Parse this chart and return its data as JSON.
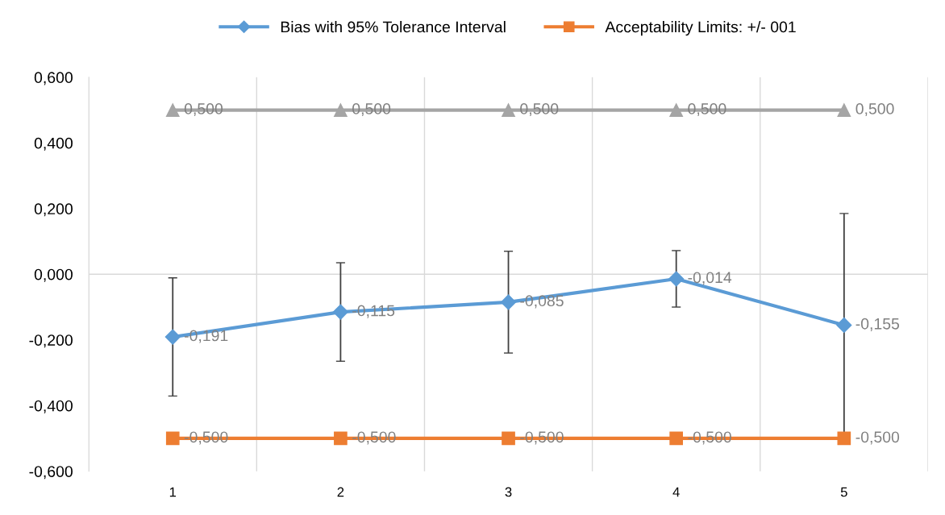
{
  "chart_data": {
    "type": "line",
    "categories": [
      "1",
      "2",
      "3",
      "4",
      "5"
    ],
    "series": [
      {
        "name": "Bias with 95% Tolerance Interval",
        "color": "#5b9bd5",
        "marker": "diamond",
        "values": [
          -0.191,
          -0.115,
          -0.085,
          -0.014,
          -0.155
        ],
        "errors": [
          0.18,
          0.15,
          0.155,
          0.086,
          0.34
        ],
        "value_labels": [
          "-0,191",
          "-0,115",
          "-0,085",
          "-0,014",
          "-0,155"
        ]
      },
      {
        "name": "Acceptability Limits: +/- 001",
        "color": "#ed7d31",
        "marker": "square",
        "values": [
          -0.5,
          -0.5,
          -0.5,
          -0.5,
          -0.5
        ],
        "value_labels": [
          "-0,500",
          "-0,500",
          "-0,500",
          "-0,500",
          "-0,500"
        ]
      },
      {
        "color": "#a5a5a5",
        "marker": "triangle",
        "values": [
          0.5,
          0.5,
          0.5,
          0.5,
          0.5
        ],
        "value_labels": [
          "0,500",
          "0,500",
          "0,500",
          "0,500",
          "0,500"
        ]
      }
    ],
    "ylim": [
      -0.6,
      0.6
    ],
    "yticks": [
      {
        "value": -0.6,
        "label": "-0,600"
      },
      {
        "value": -0.4,
        "label": "-0,400"
      },
      {
        "value": -0.2,
        "label": "-0,200"
      },
      {
        "value": 0,
        "label": "0,000"
      },
      {
        "value": 0.2,
        "label": "0,200"
      },
      {
        "value": 0.4,
        "label": "0,400"
      },
      {
        "value": 0.6,
        "label": "0,600"
      }
    ],
    "ref_lines": [
      {
        "axis": "y",
        "value": 0,
        "color": "#d9d9d9"
      }
    ],
    "grid": "x",
    "legend": "top"
  }
}
